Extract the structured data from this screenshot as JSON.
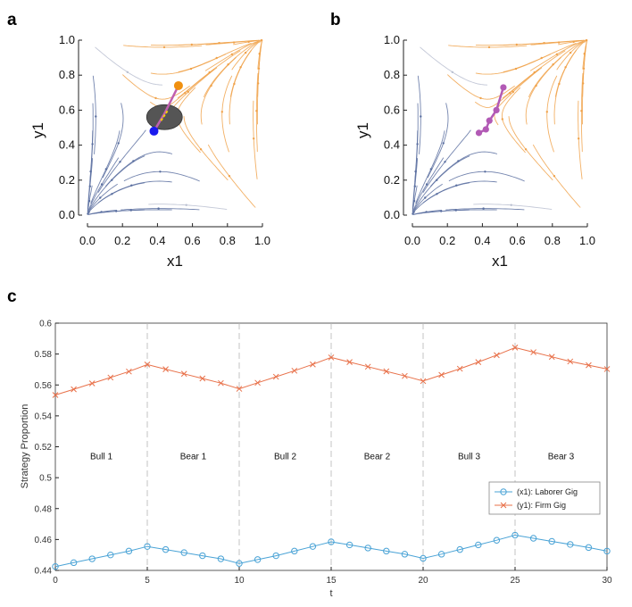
{
  "panels": [
    {
      "letter": "a",
      "xlabel": "x1",
      "ylabel": "y1",
      "ticks": [
        "0.0",
        "0.2",
        "0.4",
        "0.6",
        "0.8",
        "1.0"
      ],
      "trajectory": [
        [
          0.38,
          0.48
        ],
        [
          0.44,
          0.58
        ],
        [
          0.52,
          0.74
        ]
      ],
      "start_point": [
        0.38,
        0.48
      ],
      "end_point": [
        0.52,
        0.74
      ],
      "ellipse_center": [
        0.44,
        0.56
      ],
      "colors": {
        "trajectory": "#c060b0",
        "start": "#1a1aee",
        "end": "#f09010",
        "ellipse": "#555555",
        "dash": "#f5d000"
      }
    },
    {
      "letter": "b",
      "xlabel": "x1",
      "ylabel": "y1",
      "ticks": [
        "0.0",
        "0.2",
        "0.4",
        "0.6",
        "0.8",
        "1.0"
      ],
      "trajectory": [
        [
          0.38,
          0.47
        ],
        [
          0.42,
          0.49
        ],
        [
          0.44,
          0.54
        ],
        [
          0.48,
          0.6
        ],
        [
          0.52,
          0.73
        ]
      ],
      "colors": {
        "trajectory": "#b25ab5"
      }
    }
  ],
  "panel_c_letter": "c",
  "chart_data": {
    "type": "line",
    "title": "",
    "xlabel": "t",
    "ylabel": "Strategy Proportion",
    "xlim": [
      0,
      30
    ],
    "ylim": [
      0.44,
      0.6
    ],
    "xticks": [
      "0",
      "5",
      "10",
      "15",
      "20",
      "25",
      "30"
    ],
    "yticks": [
      "0.44",
      "0.46",
      "0.48",
      "0.5",
      "0.52",
      "0.54",
      "0.56",
      "0.58",
      "0.6"
    ],
    "phase_boundaries": [
      5,
      10,
      15,
      20,
      25
    ],
    "phases": [
      {
        "label": "Bull 1",
        "center": 2.5
      },
      {
        "label": "Bear 1",
        "center": 7.5
      },
      {
        "label": "Bull 2",
        "center": 12.5
      },
      {
        "label": "Bear 2",
        "center": 17.5
      },
      {
        "label": "Bull 3",
        "center": 22.5
      },
      {
        "label": "Bear 3",
        "center": 27.5
      }
    ],
    "phase_label_y": 0.512,
    "x": [
      0,
      1,
      2,
      3,
      4,
      5,
      6,
      7,
      8,
      9,
      10,
      11,
      12,
      13,
      14,
      15,
      16,
      17,
      18,
      19,
      20,
      21,
      22,
      23,
      24,
      25,
      26,
      27,
      28,
      29,
      30
    ],
    "series": [
      {
        "name": "(x1): Laborer Gig",
        "marker": "circle",
        "color": "#4aa3d6",
        "values": [
          0.4425,
          0.445,
          0.4475,
          0.45,
          0.4525,
          0.4555,
          0.4535,
          0.4515,
          0.4495,
          0.4475,
          0.4445,
          0.447,
          0.4495,
          0.4525,
          0.4555,
          0.4585,
          0.4565,
          0.4545,
          0.4525,
          0.4505,
          0.4478,
          0.4505,
          0.4535,
          0.4565,
          0.4595,
          0.4628,
          0.4608,
          0.4588,
          0.4568,
          0.4548,
          0.4525
        ]
      },
      {
        "name": "(y1): Firm Gig",
        "marker": "x",
        "color": "#e8714a",
        "values": [
          0.5535,
          0.5572,
          0.561,
          0.5648,
          0.5687,
          0.5732,
          0.5702,
          0.5672,
          0.5642,
          0.5612,
          0.5575,
          0.5614,
          0.5653,
          0.5692,
          0.5733,
          0.5778,
          0.5748,
          0.5718,
          0.5688,
          0.5658,
          0.5625,
          0.5665,
          0.5705,
          0.5748,
          0.5793,
          0.5842,
          0.5812,
          0.5782,
          0.5752,
          0.5728,
          0.5703
        ]
      }
    ],
    "legend_position": "right"
  }
}
